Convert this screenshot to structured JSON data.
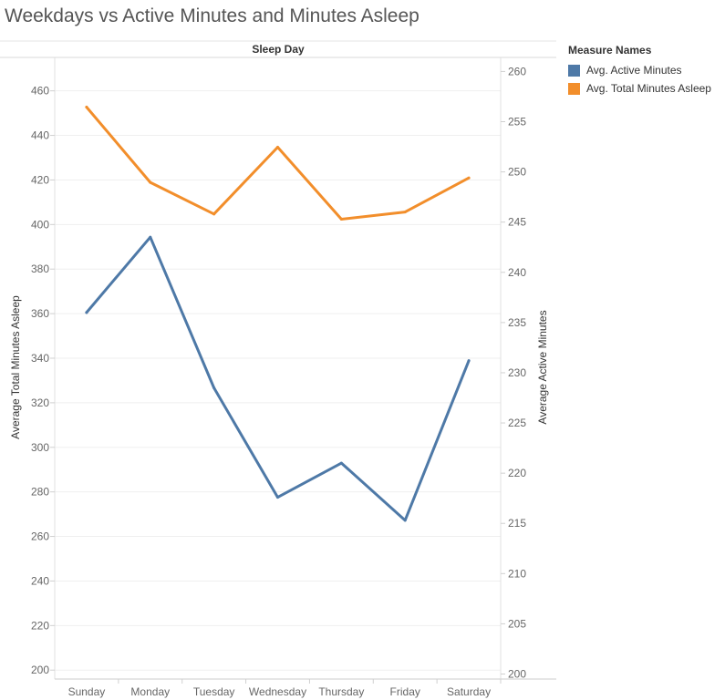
{
  "chart_data": {
    "type": "line",
    "title": "Weekdays vs Active Minutes and Minutes Asleep",
    "column_header": "Sleep Day",
    "categories": [
      "Sunday",
      "Monday",
      "Tuesday",
      "Wednesday",
      "Thursday",
      "Friday",
      "Saturday"
    ],
    "series": [
      {
        "name": "Avg. Active Minutes",
        "axis": "right",
        "color": "#4e79a7",
        "values": [
          236.0,
          243.5,
          228.5,
          217.6,
          221.0,
          215.3,
          231.2
        ]
      },
      {
        "name": "Avg. Total Minutes Asleep",
        "axis": "left",
        "color": "#f28e2b",
        "values": [
          452.7,
          418.9,
          404.7,
          434.7,
          402.4,
          405.6,
          420.9
        ]
      }
    ],
    "left_axis": {
      "label": "Average Total Minutes Asleep",
      "range": [
        196,
        475
      ],
      "ticks": [
        200,
        220,
        240,
        260,
        280,
        300,
        320,
        340,
        360,
        380,
        400,
        420,
        440,
        460
      ]
    },
    "right_axis": {
      "label": "Average Active Minutes",
      "range": [
        199.5,
        261.4
      ],
      "ticks": [
        200,
        205,
        210,
        215,
        220,
        225,
        230,
        235,
        240,
        245,
        250,
        255,
        260
      ]
    },
    "legend": {
      "title": "Measure Names",
      "placement": "right"
    },
    "grid": true
  }
}
